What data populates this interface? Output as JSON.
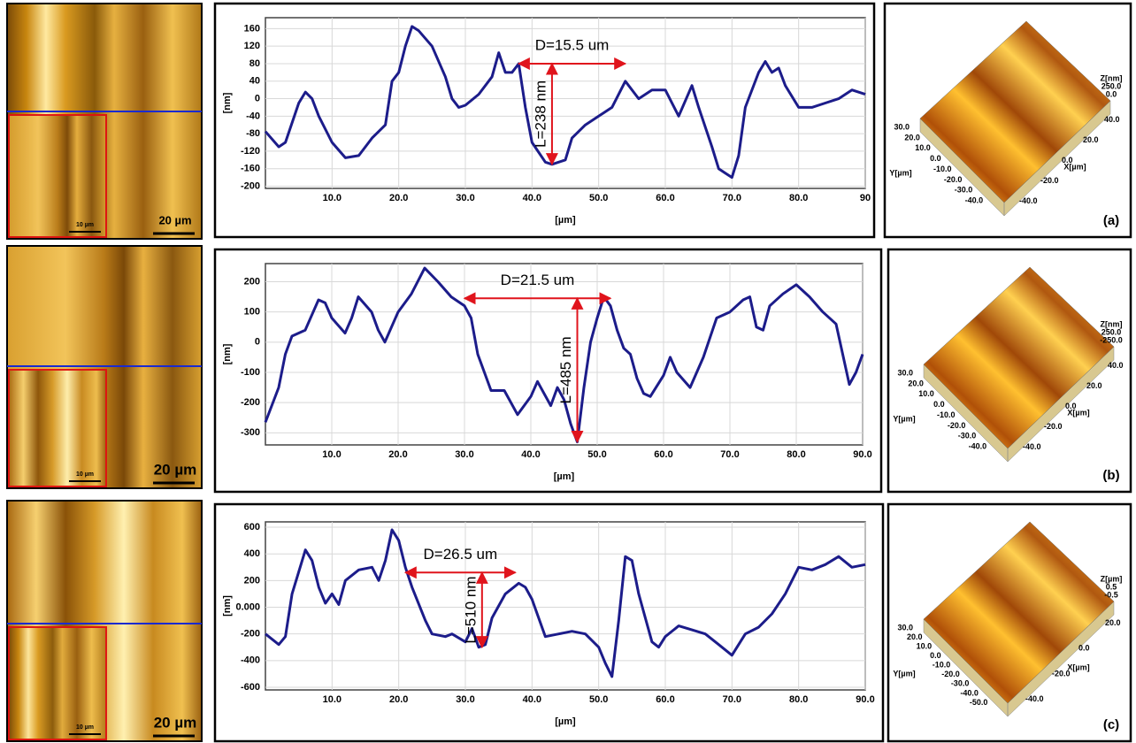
{
  "chart_data": [
    {
      "type": "line",
      "x_label": "[µm]",
      "y_label": "[nm]",
      "grid": true,
      "xlim": [
        0,
        90
      ],
      "ylim": [
        -205,
        185
      ],
      "xticks": [
        {
          "value": 10,
          "label": "10.0"
        },
        {
          "value": 20,
          "label": "20.0"
        },
        {
          "value": 30,
          "label": "30.0"
        },
        {
          "value": 40,
          "label": "40.0"
        },
        {
          "value": 50,
          "label": "50.0"
        },
        {
          "value": 60,
          "label": "60.0"
        },
        {
          "value": 70,
          "label": "70.0"
        },
        {
          "value": 80,
          "label": "80.0"
        },
        90
      ],
      "yticks": [
        -200,
        -160,
        -120,
        -80,
        -40,
        0,
        40,
        80,
        120,
        160
      ],
      "x": [
        0,
        2,
        3,
        5,
        6,
        7,
        8,
        10,
        12,
        14,
        16,
        18,
        19,
        20,
        21,
        22,
        23,
        25,
        27,
        28,
        29,
        30,
        32,
        34,
        35,
        36,
        37,
        38,
        39,
        40,
        42,
        43,
        45,
        46,
        48,
        50,
        52,
        54,
        56,
        58,
        60,
        62,
        64,
        65,
        67,
        68,
        69,
        70,
        71,
        72,
        74,
        75,
        76,
        77,
        78,
        80,
        82,
        84,
        86,
        88,
        90
      ],
      "series": [
        {
          "color": "#1c1c8a",
          "values": [
            -75,
            -110,
            -100,
            -10,
            15,
            0,
            -40,
            -100,
            -135,
            -130,
            -90,
            -60,
            40,
            60,
            120,
            165,
            155,
            120,
            50,
            0,
            -20,
            -15,
            10,
            50,
            105,
            60,
            60,
            80,
            -20,
            -100,
            -145,
            -150,
            -140,
            -90,
            -60,
            -40,
            -20,
            40,
            0,
            20,
            20,
            -40,
            30,
            -20,
            -110,
            -160,
            -170,
            -180,
            -130,
            -20,
            60,
            85,
            60,
            70,
            30,
            -20,
            -20,
            -10,
            0,
            20,
            10
          ]
        }
      ],
      "annotations": [
        {
          "text": "D=15.5 um",
          "x": [
            38,
            54
          ],
          "y": 80
        },
        {
          "text": "L=238 nm",
          "x": 43,
          "y": [
            -150,
            80
          ]
        }
      ]
    },
    {
      "type": "line",
      "x_label": "[µm]",
      "y_label": "[nm]",
      "grid": true,
      "xlim": [
        0,
        90
      ],
      "ylim": [
        -340,
        260
      ],
      "xticks": [
        {
          "value": 10,
          "label": "10.0"
        },
        {
          "value": 20,
          "label": "20.0"
        },
        {
          "value": 30,
          "label": "30.0"
        },
        {
          "value": 40,
          "label": "40.0"
        },
        {
          "value": 50,
          "label": "50.0"
        },
        {
          "value": 60,
          "label": "60.0"
        },
        {
          "value": 70,
          "label": "70.0"
        },
        {
          "value": 80,
          "label": "80.0"
        },
        {
          "value": 90,
          "label": "90.0"
        }
      ],
      "yticks": [
        -300,
        -200,
        -100,
        0,
        100,
        200
      ],
      "x": [
        0,
        2,
        3,
        4,
        6,
        8,
        9,
        10,
        12,
        13,
        14,
        16,
        17,
        18,
        20,
        22,
        24,
        26,
        28,
        30,
        31,
        32,
        33,
        34,
        36,
        38,
        40,
        41,
        43,
        44,
        45,
        46,
        47,
        48,
        49,
        50,
        51,
        52,
        53,
        54,
        55,
        56,
        57,
        58,
        60,
        61,
        62,
        64,
        66,
        68,
        70,
        72,
        73,
        74,
        75,
        76,
        78,
        80,
        82,
        84,
        86,
        88,
        89,
        90
      ],
      "series": [
        {
          "color": "#1c1c8a",
          "values": [
            -265,
            -150,
            -40,
            20,
            40,
            140,
            130,
            80,
            30,
            80,
            150,
            100,
            40,
            0,
            100,
            160,
            245,
            200,
            150,
            120,
            80,
            -40,
            -100,
            -160,
            -160,
            -240,
            -180,
            -130,
            -210,
            -150,
            -190,
            -270,
            -330,
            -150,
            0,
            80,
            150,
            120,
            40,
            -20,
            -40,
            -120,
            -170,
            -180,
            -110,
            -50,
            -100,
            -150,
            -50,
            80,
            100,
            140,
            150,
            50,
            40,
            120,
            160,
            190,
            150,
            100,
            60,
            -140,
            -100,
            -40
          ]
        }
      ],
      "annotations": [
        {
          "text": "D=21.5 um",
          "x": [
            30,
            52
          ],
          "y": 145
        },
        {
          "text": "L=485 nm",
          "x": 47,
          "y": [
            -330,
            145
          ]
        }
      ]
    },
    {
      "type": "line",
      "x_label": "[µm]",
      "y_label": "[nm]",
      "grid": true,
      "xlim": [
        0,
        90
      ],
      "ylim": [
        -620,
        640
      ],
      "xticks": [
        {
          "value": 10,
          "label": "10.0"
        },
        {
          "value": 20,
          "label": "20.0"
        },
        {
          "value": 30,
          "label": "30.0"
        },
        {
          "value": 40,
          "label": "40.0"
        },
        {
          "value": 50,
          "label": "50.0"
        },
        {
          "value": 60,
          "label": "60.0"
        },
        {
          "value": 70,
          "label": "70.0"
        },
        {
          "value": 80,
          "label": "80.0"
        },
        {
          "value": 90,
          "label": "90.0"
        }
      ],
      "yticks": [
        -600,
        -400,
        -200,
        {
          "value": 0,
          "label": "0.000"
        },
        200,
        400,
        600
      ],
      "x": [
        0,
        2,
        3,
        4,
        6,
        7,
        8,
        9,
        10,
        11,
        12,
        14,
        16,
        17,
        18,
        19,
        20,
        21,
        22,
        24,
        25,
        27,
        28,
        30,
        31,
        32,
        33,
        34,
        36,
        38,
        39,
        40,
        42,
        44,
        46,
        48,
        50,
        51,
        52,
        53,
        54,
        55,
        56,
        57,
        58,
        59,
        60,
        62,
        64,
        66,
        68,
        70,
        72,
        74,
        76,
        78,
        80,
        82,
        84,
        86,
        88,
        90
      ],
      "series": [
        {
          "color": "#1c1c8a",
          "values": [
            -200,
            -280,
            -220,
            100,
            430,
            350,
            150,
            30,
            100,
            20,
            200,
            280,
            300,
            200,
            350,
            580,
            500,
            300,
            150,
            -100,
            -200,
            -220,
            -200,
            -260,
            -160,
            -300,
            -280,
            -80,
            100,
            180,
            150,
            60,
            -220,
            -200,
            -180,
            -200,
            -300,
            -420,
            -520,
            -100,
            380,
            350,
            100,
            -80,
            -260,
            -300,
            -220,
            -140,
            -170,
            -200,
            -280,
            -360,
            -200,
            -150,
            -50,
            100,
            300,
            280,
            320,
            380,
            300,
            320
          ]
        }
      ],
      "annotations": [
        {
          "text": "D=26.5 um",
          "x": [
            21,
            37.5
          ],
          "y": 260
        },
        {
          "text": "L=510 nm",
          "x": 32.5,
          "y": [
            -300,
            260
          ]
        }
      ]
    }
  ],
  "panels": [
    {
      "label": "(a)",
      "inset_scale": "10 µm",
      "scale": "20 µm",
      "z_label": "Z[nm]",
      "z_ticks": [
        "250.0",
        "0.0"
      ],
      "y_label": "Y[µm]",
      "y_ticks": [
        "30.0",
        "20.0",
        "10.0",
        "0.0",
        "-10.0",
        "-20.0",
        "-30.0",
        "-40.0"
      ],
      "x_label": "X[µm]",
      "x_ticks": [
        "40.0",
        "20.0",
        "0.0",
        "-20.0",
        "-40.0"
      ]
    },
    {
      "label": "(b)",
      "inset_scale": "10 µm",
      "scale": "20 µm",
      "z_label": "Z[nm]",
      "z_ticks": [
        "250.0",
        "-250.0"
      ],
      "y_label": "Y[µm]",
      "y_ticks": [
        "30.0",
        "20.0",
        "10.0",
        "0.0",
        "-10.0",
        "-20.0",
        "-30.0",
        "-40.0"
      ],
      "x_label": "X[µm]",
      "x_ticks": [
        "40.0",
        "20.0",
        "0.0",
        "-20.0",
        "-40.0"
      ]
    },
    {
      "label": "(c)",
      "inset_scale": "10 µm",
      "scale": "20 µm",
      "z_label": "Z[µm]",
      "z_ticks": [
        "0.5",
        "-0.5"
      ],
      "y_label": "Y[µm]",
      "y_ticks": [
        "30.0",
        "20.0",
        "10.0",
        "0.0",
        "-10.0",
        "-20.0",
        "-30.0",
        "-40.0",
        "-50.0"
      ],
      "x_label": "X[µm]",
      "x_ticks": [
        "20.0",
        "0.0",
        "-20.0",
        "-40.0"
      ]
    }
  ]
}
